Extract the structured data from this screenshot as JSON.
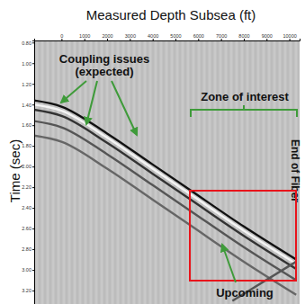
{
  "chart_data": {
    "type": "line",
    "title": "Measured Depth Subsea (ft)",
    "y_label": "Time (sec)",
    "xlim": [
      -1200,
      10450
    ],
    "ylim": [
      0.78,
      3.33
    ],
    "xticks": [
      0,
      1000,
      2000,
      3000,
      4000,
      5000,
      6000,
      7000,
      8000,
      9000,
      10000
    ],
    "yticks": [
      {
        "value": 0.8,
        "label": "0.80"
      },
      {
        "value": 1.0,
        "label": "1.00"
      },
      {
        "value": 1.2,
        "label": "1.20"
      },
      {
        "value": 1.4,
        "label": "1.40"
      },
      {
        "value": 1.6,
        "label": "1.60"
      },
      {
        "value": 1.8,
        "label": "1.80"
      },
      {
        "value": 2.0,
        "label": "2.00"
      },
      {
        "value": 2.2,
        "label": "2.20"
      },
      {
        "value": 2.4,
        "label": "2.40"
      },
      {
        "value": 2.6,
        "label": "2.60"
      },
      {
        "value": 2.8,
        "label": "2.80"
      },
      {
        "value": 3.0,
        "label": "3.00"
      },
      {
        "value": 3.2,
        "label": "3.20"
      }
    ],
    "series": [
      {
        "color": "#111111",
        "x": [
          -1200,
          0,
          2000,
          4000,
          5600,
          8000,
          10300
        ],
        "values": [
          1.36,
          1.42,
          1.68,
          1.98,
          2.22,
          2.58,
          2.9
        ]
      },
      {
        "color": "#f4f4f4",
        "x": [
          -1200,
          0,
          2000,
          4000,
          5600,
          8000,
          10300
        ],
        "values": [
          1.4,
          1.46,
          1.72,
          2.02,
          2.26,
          2.62,
          2.94
        ]
      },
      {
        "color": "#333333",
        "x": [
          -1200,
          0,
          2000,
          4000,
          5600,
          8000,
          10300
        ],
        "values": [
          1.45,
          1.51,
          1.77,
          2.07,
          2.31,
          2.67,
          2.99
        ]
      },
      {
        "color": "#555555",
        "x": [
          -1200,
          0,
          2000,
          4000,
          5600,
          8000,
          10300
        ],
        "values": [
          1.56,
          1.62,
          1.88,
          2.18,
          2.42,
          2.78,
          3.1
        ]
      },
      {
        "color": "#666666",
        "x": [
          -1200,
          0,
          2000,
          4000,
          5600,
          8000,
          10300
        ],
        "values": [
          1.7,
          1.76,
          2.02,
          2.32,
          2.56,
          2.92,
          3.24
        ]
      },
      {
        "color": "#555555",
        "x": [
          7500,
          10300
        ],
        "values": [
          3.3,
          2.92
        ]
      }
    ],
    "annotations": [
      [
        "Coupling issues",
        "(expected)"
      ],
      [
        "Zone of interest"
      ],
      [
        "End of Fiber"
      ],
      [
        "Upcoming"
      ]
    ]
  }
}
